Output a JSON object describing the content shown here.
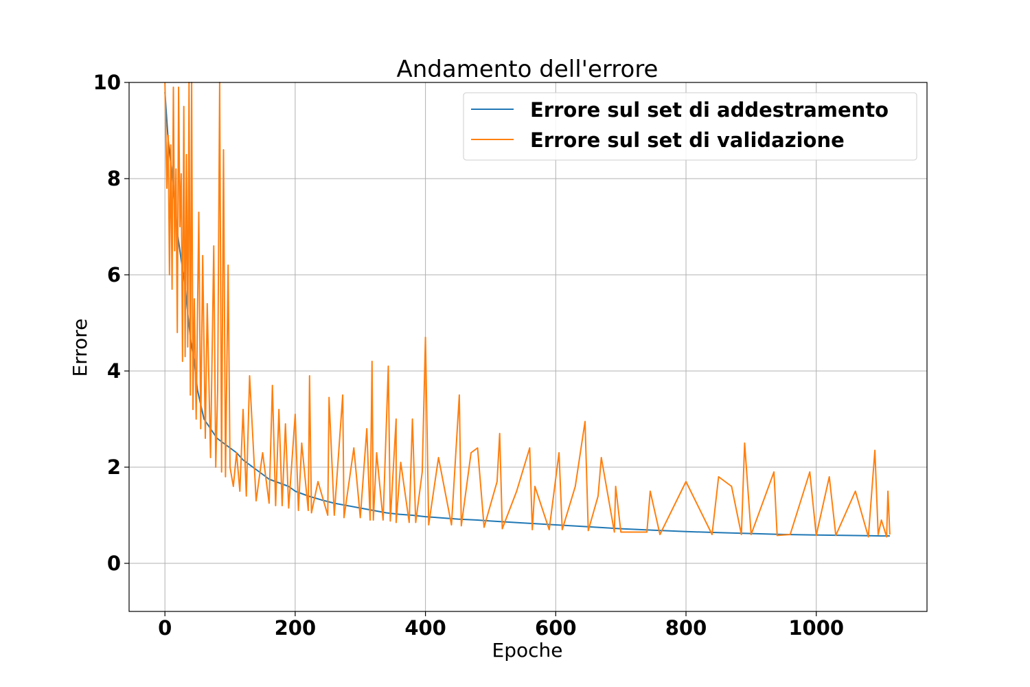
{
  "chart_data": {
    "type": "line",
    "title": "Andamento dell'errore",
    "xlabel": "Epoche",
    "ylabel": "Errore",
    "xlim": [
      -55,
      1170
    ],
    "ylim": [
      -1,
      10
    ],
    "xticks": [
      0,
      200,
      400,
      600,
      800,
      1000
    ],
    "yticks": [
      0,
      2,
      4,
      6,
      8,
      10
    ],
    "grid": true,
    "legend_position": "top-right",
    "series": [
      {
        "name": "Errore sul set di addestramento",
        "color": "#1f77b4",
        "x": [
          0,
          5,
          10,
          15,
          20,
          25,
          30,
          35,
          40,
          45,
          50,
          55,
          60,
          70,
          80,
          90,
          100,
          110,
          120,
          130,
          140,
          150,
          160,
          170,
          180,
          190,
          200,
          220,
          240,
          260,
          280,
          300,
          320,
          340,
          360,
          380,
          400,
          420,
          450,
          480,
          500,
          550,
          600,
          650,
          700,
          750,
          800,
          850,
          900,
          950,
          1000,
          1050,
          1100,
          1113
        ],
        "y": [
          9.8,
          8.8,
          8.2,
          7.5,
          6.8,
          6.3,
          5.9,
          5.2,
          4.6,
          4.2,
          3.6,
          3.3,
          3.0,
          2.8,
          2.6,
          2.5,
          2.4,
          2.3,
          2.15,
          2.05,
          1.95,
          1.85,
          1.75,
          1.7,
          1.65,
          1.6,
          1.5,
          1.4,
          1.32,
          1.25,
          1.2,
          1.15,
          1.1,
          1.05,
          1.02,
          1.0,
          0.97,
          0.95,
          0.92,
          0.9,
          0.88,
          0.84,
          0.8,
          0.76,
          0.72,
          0.69,
          0.66,
          0.64,
          0.62,
          0.6,
          0.59,
          0.58,
          0.57,
          0.57
        ]
      },
      {
        "name": "Errore sul set di validazione",
        "color": "#ff7f0e",
        "x": [
          0,
          3,
          5,
          7,
          9,
          11,
          13,
          15,
          17,
          19,
          21,
          23,
          25,
          27,
          29,
          31,
          33,
          35,
          37,
          39,
          41,
          43,
          45,
          48,
          52,
          55,
          58,
          62,
          65,
          70,
          75,
          78,
          81,
          84,
          87,
          90,
          93,
          97,
          100,
          105,
          110,
          115,
          120,
          125,
          130,
          140,
          150,
          160,
          165,
          170,
          175,
          180,
          185,
          190,
          200,
          205,
          210,
          220,
          222,
          225,
          235,
          250,
          252,
          260,
          273,
          275,
          290,
          300,
          310,
          315,
          318,
          320,
          325,
          335,
          343,
          346,
          355,
          355,
          362,
          375,
          380,
          385,
          395,
          400,
          405,
          420,
          440,
          452,
          455,
          470,
          480,
          490,
          510,
          514,
          518,
          540,
          560,
          564,
          568,
          590,
          605,
          610,
          630,
          645,
          650,
          665,
          670,
          690,
          692,
          700,
          740,
          745,
          760,
          800,
          840,
          850,
          870,
          885,
          890,
          900,
          935,
          940,
          960,
          990,
          1000,
          1020,
          1030,
          1060,
          1080,
          1090,
          1095,
          1100,
          1108,
          1110,
          1113
        ],
        "y": [
          10.0,
          7.8,
          8.9,
          6.0,
          8.7,
          5.7,
          9.9,
          6.5,
          8.2,
          4.8,
          9.9,
          7.0,
          8.1,
          4.2,
          9.5,
          4.3,
          8.5,
          4.5,
          10.0,
          3.5,
          10.0,
          3.2,
          5.5,
          3.0,
          7.3,
          2.8,
          6.4,
          2.6,
          5.4,
          2.2,
          6.6,
          2.0,
          3.6,
          10.0,
          1.9,
          8.6,
          1.8,
          6.2,
          2.0,
          1.6,
          2.3,
          1.5,
          3.2,
          1.4,
          3.9,
          1.3,
          2.3,
          1.25,
          3.7,
          1.2,
          3.2,
          1.2,
          2.9,
          1.15,
          3.1,
          1.1,
          2.5,
          1.1,
          3.9,
          1.05,
          1.7,
          1.0,
          3.45,
          1.0,
          3.5,
          0.95,
          2.4,
          0.95,
          2.8,
          0.9,
          4.2,
          0.9,
          2.3,
          0.9,
          4.1,
          0.88,
          3.0,
          0.85,
          2.1,
          0.85,
          3.0,
          0.85,
          1.9,
          4.7,
          0.8,
          2.2,
          0.8,
          3.5,
          0.78,
          2.3,
          2.4,
          0.75,
          1.7,
          2.7,
          0.72,
          1.5,
          2.4,
          0.7,
          1.6,
          0.7,
          2.3,
          0.7,
          1.6,
          2.95,
          0.68,
          1.4,
          2.2,
          0.65,
          1.6,
          0.65,
          0.65,
          1.5,
          0.6,
          1.7,
          0.6,
          1.8,
          1.6,
          0.6,
          2.5,
          0.6,
          1.9,
          0.58,
          0.6,
          1.9,
          0.58,
          1.8,
          0.58,
          1.5,
          0.55,
          2.35,
          0.6,
          0.9,
          0.55,
          1.5,
          0.6
        ]
      }
    ]
  }
}
